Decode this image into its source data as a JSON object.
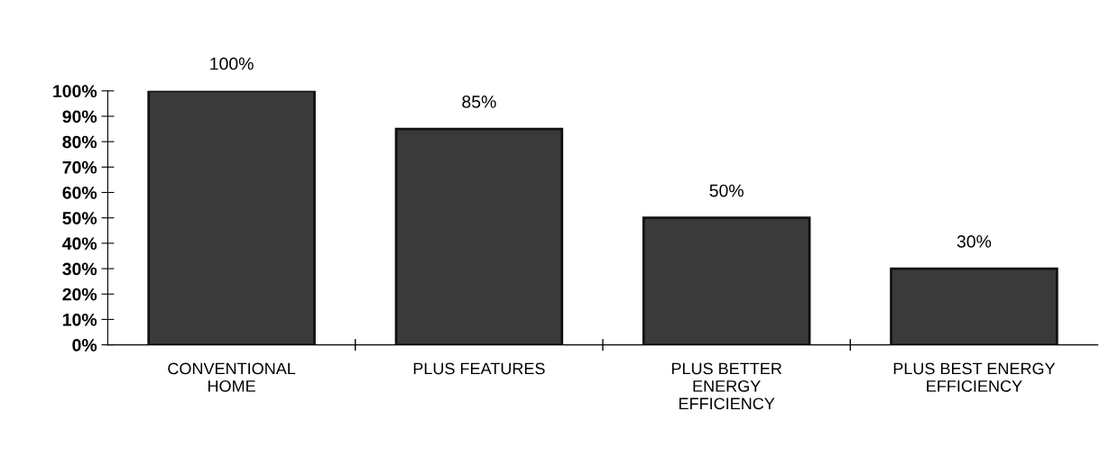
{
  "chart_data": {
    "type": "bar",
    "categories": [
      "CONVENTIONAL\nHOME",
      "PLUS FEATURES",
      "PLUS BETTER\nENERGY\nEFFICIENCY",
      "PLUS BEST ENERGY\nEFFICIENCY"
    ],
    "values": [
      100,
      85,
      50,
      30
    ],
    "value_labels": [
      "100%",
      "85%",
      "50%",
      "30%"
    ],
    "color": "#3a3a3a",
    "ylim": [
      0,
      100
    ],
    "yticks": [
      {
        "value": 0,
        "label": "0%"
      },
      {
        "value": 10,
        "label": "10%"
      },
      {
        "value": 20,
        "label": "20%"
      },
      {
        "value": 30,
        "label": "30%"
      },
      {
        "value": 40,
        "label": "40%"
      },
      {
        "value": 50,
        "label": "50%"
      },
      {
        "value": 60,
        "label": "60%"
      },
      {
        "value": 70,
        "label": "70%"
      },
      {
        "value": 80,
        "label": "80%"
      },
      {
        "value": 90,
        "label": "90%"
      },
      {
        "value": 100,
        "label": "100%"
      }
    ],
    "grid": false
  }
}
